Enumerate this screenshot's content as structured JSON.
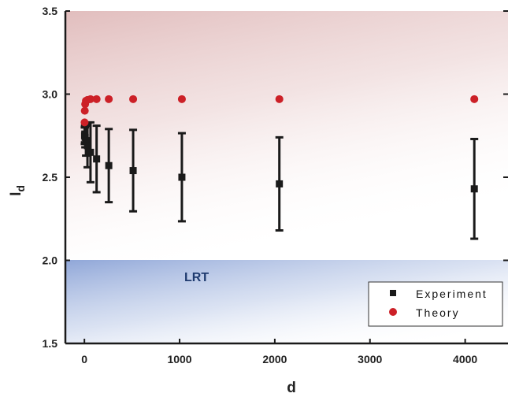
{
  "chart_data": {
    "type": "scatter",
    "xlabel": "d",
    "ylabel": "I",
    "ylabel_subscript": "d",
    "xlim": [
      -200,
      4450
    ],
    "ylim": [
      1.5,
      3.5
    ],
    "xticks": [
      0,
      1000,
      2000,
      3000,
      4000
    ],
    "yticks": [
      1.5,
      2.0,
      2.5,
      3.0,
      3.5
    ],
    "xtick_labels": [
      "0",
      "1000",
      "2000",
      "3000",
      "4000"
    ],
    "ytick_labels": [
      "1.5",
      "2.0",
      "2.5",
      "3.0",
      "3.5"
    ],
    "grid": false,
    "legend_position": "bottom-right",
    "region_label": "LRT",
    "region_range": [
      1.5,
      2.0
    ],
    "colors": {
      "experiment": "#1a1a1a",
      "theory": "#cc2027",
      "upper_region": "#c98888",
      "lower_region": "#8aa2d6"
    },
    "series": [
      {
        "name": "Experiment",
        "marker": "square",
        "points": [
          {
            "x": 2,
            "y": 2.75,
            "err": 0.05
          },
          {
            "x": 4,
            "y": 2.76,
            "err": 0.05
          },
          {
            "x": 8,
            "y": 2.74,
            "err": 0.06
          },
          {
            "x": 16,
            "y": 2.72,
            "err": 0.09
          },
          {
            "x": 32,
            "y": 2.69,
            "err": 0.13
          },
          {
            "x": 64,
            "y": 2.65,
            "err": 0.18
          },
          {
            "x": 128,
            "y": 2.61,
            "err": 0.2
          },
          {
            "x": 256,
            "y": 2.57,
            "err": 0.22
          },
          {
            "x": 512,
            "y": 2.54,
            "err": 0.245
          },
          {
            "x": 1024,
            "y": 2.5,
            "err": 0.265
          },
          {
            "x": 2048,
            "y": 2.46,
            "err": 0.28
          },
          {
            "x": 4096,
            "y": 2.43,
            "err": 0.3
          }
        ]
      },
      {
        "name": "Theory",
        "marker": "circle",
        "points": [
          {
            "x": 2,
            "y": 2.83
          },
          {
            "x": 4,
            "y": 2.9
          },
          {
            "x": 8,
            "y": 2.94
          },
          {
            "x": 16,
            "y": 2.96
          },
          {
            "x": 32,
            "y": 2.965
          },
          {
            "x": 64,
            "y": 2.97
          },
          {
            "x": 128,
            "y": 2.97
          },
          {
            "x": 256,
            "y": 2.97
          },
          {
            "x": 512,
            "y": 2.97
          },
          {
            "x": 1024,
            "y": 2.97
          },
          {
            "x": 2048,
            "y": 2.97
          },
          {
            "x": 4096,
            "y": 2.97
          }
        ]
      }
    ]
  }
}
